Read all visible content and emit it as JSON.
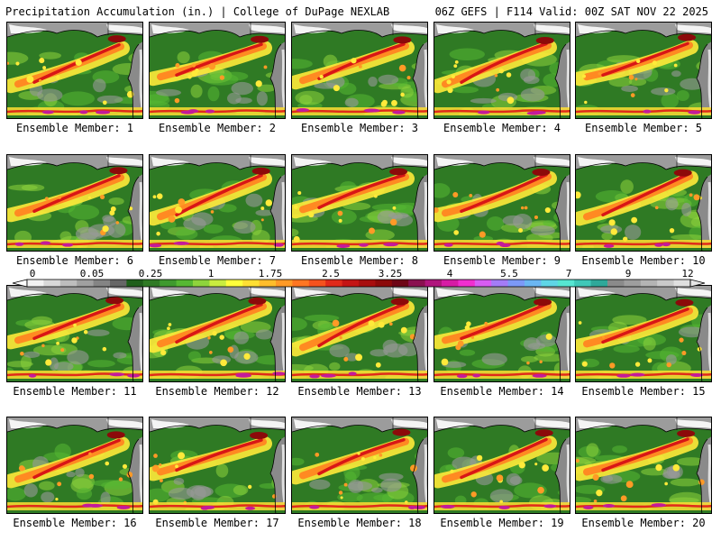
{
  "header": {
    "left": "Precipitation Accumulation (in.) | College of DuPage NEXLAB",
    "right": "06Z GEFS | F114 Valid: 00Z SAT NOV 22 2025"
  },
  "panels": [
    {
      "label": "Ensemble Member: 1"
    },
    {
      "label": "Ensemble Member: 2"
    },
    {
      "label": "Ensemble Member: 3"
    },
    {
      "label": "Ensemble Member: 4"
    },
    {
      "label": "Ensemble Member: 5"
    },
    {
      "label": "Ensemble Member: 6"
    },
    {
      "label": "Ensemble Member: 7"
    },
    {
      "label": "Ensemble Member: 8"
    },
    {
      "label": "Ensemble Member: 9"
    },
    {
      "label": "Ensemble Member: 10"
    },
    {
      "label": "Ensemble Member: 11"
    },
    {
      "label": "Ensemble Member: 12"
    },
    {
      "label": "Ensemble Member: 13"
    },
    {
      "label": "Ensemble Member: 14"
    },
    {
      "label": "Ensemble Member: 15"
    },
    {
      "label": "Ensemble Member: 16"
    },
    {
      "label": "Ensemble Member: 17"
    },
    {
      "label": "Ensemble Member: 18"
    },
    {
      "label": "Ensemble Member: 19"
    },
    {
      "label": "Ensemble Member: 20"
    }
  ],
  "colorbar": {
    "labels": [
      "0",
      "0.05",
      "0.25",
      "1",
      "1.75",
      "2.5",
      "3.25",
      "4",
      "5.5",
      "7",
      "9",
      "12"
    ],
    "colors": [
      "#f2f2f2",
      "#d9d9d9",
      "#bdbdbd",
      "#a0a0a0",
      "#848484",
      "#666666",
      "#1f5f1a",
      "#2f7a24",
      "#3f9a2e",
      "#56b833",
      "#8ed43c",
      "#c9ec3e",
      "#ffff3a",
      "#ffdf33",
      "#ffbd2b",
      "#ff9a26",
      "#ff7622",
      "#f5521e",
      "#e02a1a",
      "#c41414",
      "#a80e0e",
      "#8c0a0a",
      "#6e0616",
      "#8a1050",
      "#b0157d",
      "#d61ca5",
      "#f02ed0",
      "#d75cf2",
      "#a47cf7",
      "#7c99f7",
      "#6bb6f2",
      "#5fd6e6",
      "#56e6d2",
      "#40c8b8",
      "#2fa89a",
      "#8a8a8a",
      "#9e9e9e",
      "#b4b4b4",
      "#cacaca",
      "#e0e0e0"
    ]
  },
  "colors": {
    "ocean_green": "#2f7a24",
    "land_gray": "#8a8a8a",
    "snow_white": "#f4f4f4",
    "heavy_yellow": "#ffea3a",
    "heavy_orange": "#ff8a22",
    "heavy_red": "#d81616",
    "extreme_magenta": "#c41a9a"
  }
}
